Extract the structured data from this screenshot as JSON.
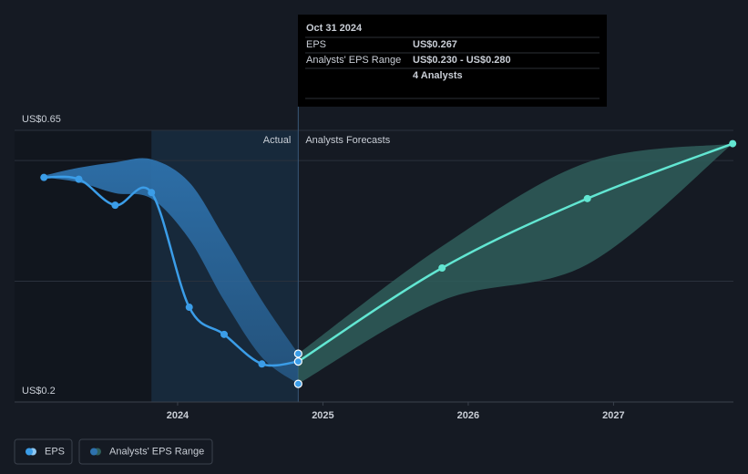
{
  "chart_data": {
    "type": "line",
    "xlim": [
      2022.878,
      2027.825
    ],
    "xticks": [
      2024,
      2025,
      2026,
      2027
    ],
    "ylim": [
      0.2,
      0.65
    ],
    "yticks": [
      {
        "value": 0.65,
        "label": "US$0.65"
      },
      {
        "value": 0.2,
        "label": "US$0.2"
      }
    ],
    "grid": [
      0.6,
      0.4
    ],
    "labels": {
      "actual": "Actual",
      "forecast": "Analysts Forecasts"
    },
    "series": [
      {
        "name": "EPS",
        "actual": {
          "color": "#3b9de8",
          "x": [
            2023.08,
            2023.32,
            2023.57,
            2023.82,
            2024.08,
            2024.32,
            2024.58,
            2024.83
          ],
          "values": [
            0.572,
            0.569,
            0.526,
            0.547,
            0.357,
            0.312,
            0.263,
            0.267
          ]
        },
        "forecast": {
          "color": "#62e6d2",
          "x": [
            2024.83,
            2025.82,
            2026.82,
            2027.82
          ],
          "values": [
            0.267,
            0.422,
            0.537,
            0.628
          ]
        }
      },
      {
        "name": "Analysts' EPS Range",
        "actual": {
          "color": "#2e72ad",
          "x": [
            2023.08,
            2023.32,
            2023.57,
            2023.82,
            2024.08,
            2024.32,
            2024.58,
            2024.83
          ],
          "high": [
            0.575,
            0.588,
            0.597,
            0.602,
            0.564,
            0.473,
            0.368,
            0.28
          ],
          "low": [
            0.572,
            0.564,
            0.546,
            0.537,
            0.47,
            0.368,
            0.274,
            0.23
          ]
        },
        "forecast": {
          "color": "#2f5e5b",
          "x": [
            2024.83,
            2025.82,
            2026.82,
            2027.82
          ],
          "high": [
            0.28,
            0.458,
            0.597,
            0.628
          ],
          "low": [
            0.23,
            0.368,
            0.428,
            0.628
          ]
        }
      }
    ],
    "tooltip": {
      "date": "Oct 31 2024",
      "x": 2024.83,
      "rows": [
        {
          "label": "EPS",
          "value": 0.267,
          "value_label": "US$0.267"
        },
        {
          "label": "Analysts' EPS Range",
          "value": [
            0.23,
            0.28
          ],
          "value_label": "US$0.230 - US$0.280"
        }
      ],
      "note": "4 Analysts"
    }
  }
}
